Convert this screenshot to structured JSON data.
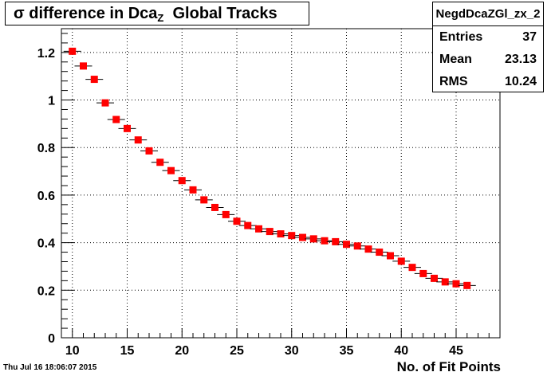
{
  "title_main": "σ difference in Dca",
  "title_sub": "Z",
  "title_rest": "Global Tracks",
  "stats": {
    "name": "NegdDcaZGl_zx_2",
    "rows": [
      {
        "label": "Entries",
        "value": "37"
      },
      {
        "label": "Mean",
        "value": "23.13"
      },
      {
        "label": "RMS",
        "value": "10.24"
      }
    ]
  },
  "date": "Thu Jul 16 18:06:07 2015",
  "chart_data": {
    "type": "scatter",
    "xlabel": "No. of Fit Points",
    "ylabel": "",
    "xlim": [
      9,
      49
    ],
    "ylim": [
      0,
      1.3
    ],
    "x_ticks": [
      "10",
      "15",
      "20",
      "25",
      "30",
      "35",
      "40",
      "45"
    ],
    "y_ticks": [
      "0",
      "0.2",
      "0.4",
      "0.6",
      "0.8",
      "1",
      "1.2"
    ],
    "grid": true,
    "marker_color": "#ff0000",
    "series": [
      {
        "x": [
          10,
          11,
          12,
          13,
          14,
          15,
          16,
          17,
          18,
          19,
          20,
          21,
          22,
          23,
          24,
          25,
          26,
          27,
          28,
          29,
          30,
          31,
          32,
          33,
          34,
          35,
          36,
          37,
          38,
          39,
          40,
          41,
          42,
          43,
          44,
          45,
          46
        ],
        "y": [
          1.205,
          1.143,
          1.087,
          0.988,
          0.918,
          0.88,
          0.832,
          0.786,
          0.738,
          0.703,
          0.661,
          0.622,
          0.58,
          0.548,
          0.518,
          0.49,
          0.472,
          0.458,
          0.447,
          0.437,
          0.43,
          0.422,
          0.416,
          0.408,
          0.404,
          0.393,
          0.386,
          0.373,
          0.36,
          0.345,
          0.322,
          0.296,
          0.27,
          0.25,
          0.235,
          0.227,
          0.22
        ]
      }
    ]
  }
}
